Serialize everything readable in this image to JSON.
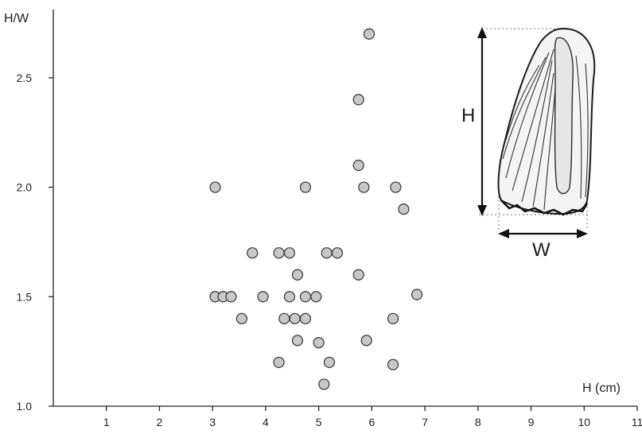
{
  "chart_data": {
    "type": "scatter",
    "xlabel": "H (cm)",
    "ylabel": "H/W",
    "xlim": [
      0,
      11
    ],
    "ylim": [
      1.0,
      2.75
    ],
    "x_ticks": [
      1,
      2,
      3,
      4,
      5,
      6,
      7,
      8,
      9,
      10,
      11
    ],
    "x_tick_labels": [
      "1",
      "2",
      "3",
      "4",
      "5",
      "6",
      "7",
      "8",
      "9",
      "10",
      "11"
    ],
    "y_ticks": [
      1.0,
      1.5,
      2.0,
      2.5
    ],
    "y_tick_labels": [
      "1.0",
      "1.5",
      "2.0",
      "2.5"
    ],
    "grid": false,
    "legend": "none",
    "marker": "circle",
    "colors": {
      "marker_fill": "#c8c8c8",
      "marker_stroke": "#333333",
      "axis": "#222222"
    },
    "points": [
      {
        "x": 5.95,
        "y": 2.7
      },
      {
        "x": 5.75,
        "y": 2.4
      },
      {
        "x": 5.75,
        "y": 2.1
      },
      {
        "x": 3.05,
        "y": 2.0
      },
      {
        "x": 4.75,
        "y": 2.0
      },
      {
        "x": 5.85,
        "y": 2.0
      },
      {
        "x": 6.45,
        "y": 2.0
      },
      {
        "x": 6.6,
        "y": 1.9
      },
      {
        "x": 3.75,
        "y": 1.7
      },
      {
        "x": 4.25,
        "y": 1.7
      },
      {
        "x": 4.45,
        "y": 1.7
      },
      {
        "x": 5.15,
        "y": 1.7
      },
      {
        "x": 5.35,
        "y": 1.7
      },
      {
        "x": 4.6,
        "y": 1.6
      },
      {
        "x": 5.75,
        "y": 1.6
      },
      {
        "x": 3.05,
        "y": 1.5
      },
      {
        "x": 3.2,
        "y": 1.5
      },
      {
        "x": 3.35,
        "y": 1.5
      },
      {
        "x": 3.95,
        "y": 1.5
      },
      {
        "x": 4.45,
        "y": 1.5
      },
      {
        "x": 4.75,
        "y": 1.5
      },
      {
        "x": 4.95,
        "y": 1.5
      },
      {
        "x": 6.85,
        "y": 1.51
      },
      {
        "x": 3.55,
        "y": 1.4
      },
      {
        "x": 4.35,
        "y": 1.4
      },
      {
        "x": 4.55,
        "y": 1.4
      },
      {
        "x": 4.75,
        "y": 1.4
      },
      {
        "x": 6.4,
        "y": 1.4
      },
      {
        "x": 4.6,
        "y": 1.3
      },
      {
        "x": 5.0,
        "y": 1.29
      },
      {
        "x": 5.9,
        "y": 1.3
      },
      {
        "x": 4.25,
        "y": 1.2
      },
      {
        "x": 5.2,
        "y": 1.2
      },
      {
        "x": 6.4,
        "y": 1.19
      },
      {
        "x": 5.1,
        "y": 1.1
      }
    ]
  },
  "inset": {
    "height_label": "H",
    "width_label": "W"
  }
}
